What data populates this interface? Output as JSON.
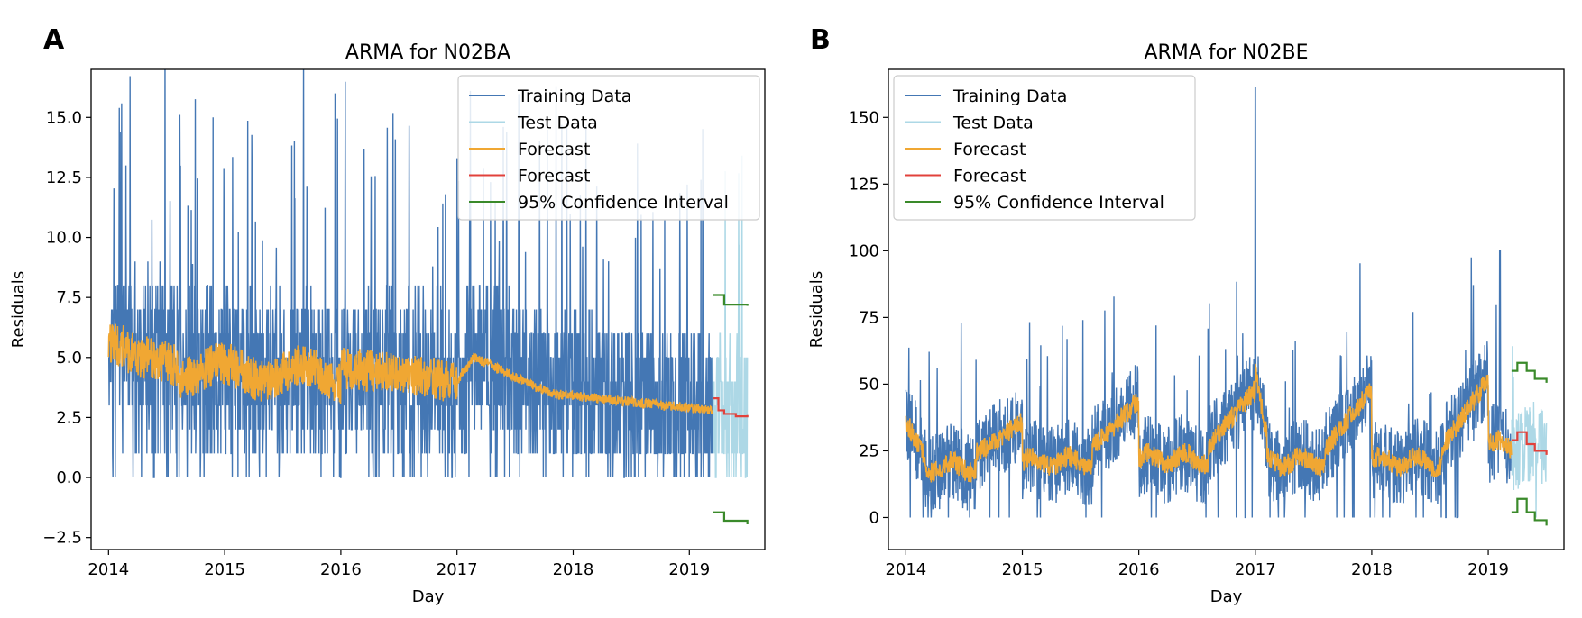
{
  "figure": {
    "panel_letters": [
      "A",
      "B"
    ]
  },
  "chart_data": [
    {
      "type": "line",
      "title": "ARMA for N02BA",
      "xlabel": "Day",
      "ylabel": "Residuals",
      "xlim": [
        2013.85,
        2019.65
      ],
      "ylim": [
        -3.0,
        17.0
      ],
      "xticks": [
        2014,
        2015,
        2016,
        2017,
        2018,
        2019
      ],
      "yticks": [
        -2.5,
        0.0,
        2.5,
        5.0,
        7.5,
        10.0,
        12.5,
        15.0
      ],
      "ytick_labels": [
        "−2.5",
        "0.0",
        "2.5",
        "5.0",
        "7.5",
        "10.0",
        "12.5",
        "15.0"
      ],
      "grid": false,
      "legend_position": "top-right",
      "train_end": 2019.2,
      "test_end": 2019.5,
      "series": [
        {
          "name": "Training Data",
          "color": "#4477b4",
          "profile": "residuals"
        },
        {
          "name": "Test Data",
          "color": "#add8e6",
          "profile": "residuals"
        },
        {
          "name": "Forecast",
          "color": "#f0a733",
          "profile": "in-sample fit"
        },
        {
          "name": "Forecast",
          "color": "#e2413b",
          "points": [
            [
              2019.2,
              3.3
            ],
            [
              2019.25,
              2.8
            ],
            [
              2019.3,
              2.65
            ],
            [
              2019.4,
              2.55
            ],
            [
              2019.5,
              2.6
            ]
          ]
        },
        {
          "name": "95% Confidence Interval",
          "color": "#3a8a2a",
          "upper": [
            [
              2019.2,
              7.6
            ],
            [
              2019.3,
              7.2
            ],
            [
              2019.5,
              7.15
            ]
          ],
          "lower": [
            [
              2019.2,
              -1.45
            ],
            [
              2019.3,
              -1.8
            ],
            [
              2019.5,
              -1.95
            ]
          ]
        }
      ]
    },
    {
      "type": "line",
      "title": "ARMA for N02BE",
      "xlabel": "Day",
      "ylabel": "Residuals",
      "xlim": [
        2013.85,
        2019.65
      ],
      "ylim": [
        -12,
        168
      ],
      "xticks": [
        2014,
        2015,
        2016,
        2017,
        2018,
        2019
      ],
      "yticks": [
        0,
        25,
        50,
        75,
        100,
        125,
        150
      ],
      "ytick_labels": [
        "0",
        "25",
        "50",
        "75",
        "100",
        "125",
        "150"
      ],
      "grid": false,
      "legend_position": "top-left",
      "train_end": 2019.2,
      "test_end": 2019.5,
      "series": [
        {
          "name": "Training Data",
          "color": "#4477b4",
          "profile": "residuals"
        },
        {
          "name": "Test Data",
          "color": "#add8e6",
          "profile": "residuals"
        },
        {
          "name": "Forecast",
          "color": "#f0a733",
          "profile": "in-sample fit"
        },
        {
          "name": "Forecast",
          "color": "#e2413b",
          "points": [
            [
              2019.2,
              29
            ],
            [
              2019.25,
              32
            ],
            [
              2019.33,
              27.5
            ],
            [
              2019.4,
              25
            ],
            [
              2019.5,
              23.5
            ]
          ]
        },
        {
          "name": "95% Confidence Interval",
          "color": "#3a8a2a",
          "upper": [
            [
              2019.2,
              55
            ],
            [
              2019.25,
              58
            ],
            [
              2019.33,
              55
            ],
            [
              2019.4,
              52
            ],
            [
              2019.5,
              50.5
            ]
          ],
          "lower": [
            [
              2019.2,
              2
            ],
            [
              2019.25,
              7
            ],
            [
              2019.33,
              2
            ],
            [
              2019.4,
              -1
            ],
            [
              2019.5,
              -3
            ]
          ]
        }
      ]
    }
  ]
}
